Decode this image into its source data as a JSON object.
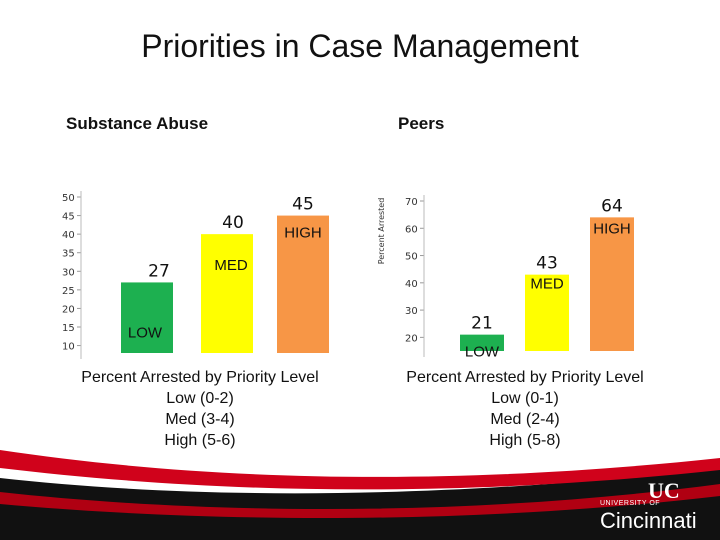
{
  "title": "Priorities in Case Management",
  "colors": {
    "low": "#1db050",
    "med": "#ffff00",
    "high": "#f79646",
    "footer_red": "#d0021b",
    "footer_dark": "#111111"
  },
  "footer": {
    "university_top": "UNIVERSITY OF",
    "university_name": "Cincinnati"
  },
  "chart_data": [
    {
      "type": "bar",
      "title": "Substance Abuse",
      "categories": [
        "LOW",
        "MED",
        "HIGH"
      ],
      "values": [
        27,
        40,
        45
      ],
      "value_labels": [
        "27",
        "40",
        "45"
      ],
      "ylim": [
        8,
        50
      ],
      "yticks": [
        "10",
        "15",
        "20",
        "25",
        "30",
        "35",
        "40",
        "45",
        "50"
      ],
      "ylabel": "",
      "caption": [
        "Percent Arrested by Priority Level",
        "Low (0-2)",
        "Med (3-4)",
        "High (5-6)"
      ]
    },
    {
      "type": "bar",
      "title": "Peers",
      "categories": [
        "LOW",
        "MED",
        "HIGH"
      ],
      "values": [
        21,
        43,
        64
      ],
      "value_labels": [
        "21",
        "43",
        "64"
      ],
      "ylim": [
        15,
        70
      ],
      "yticks": [
        "20",
        "30",
        "40",
        "50",
        "60",
        "70"
      ],
      "ylabel": "Percent Arrested",
      "caption": [
        "Percent Arrested by Priority Level",
        "Low (0-1)",
        "Med (2-4)",
        "High (5-8)"
      ]
    }
  ]
}
